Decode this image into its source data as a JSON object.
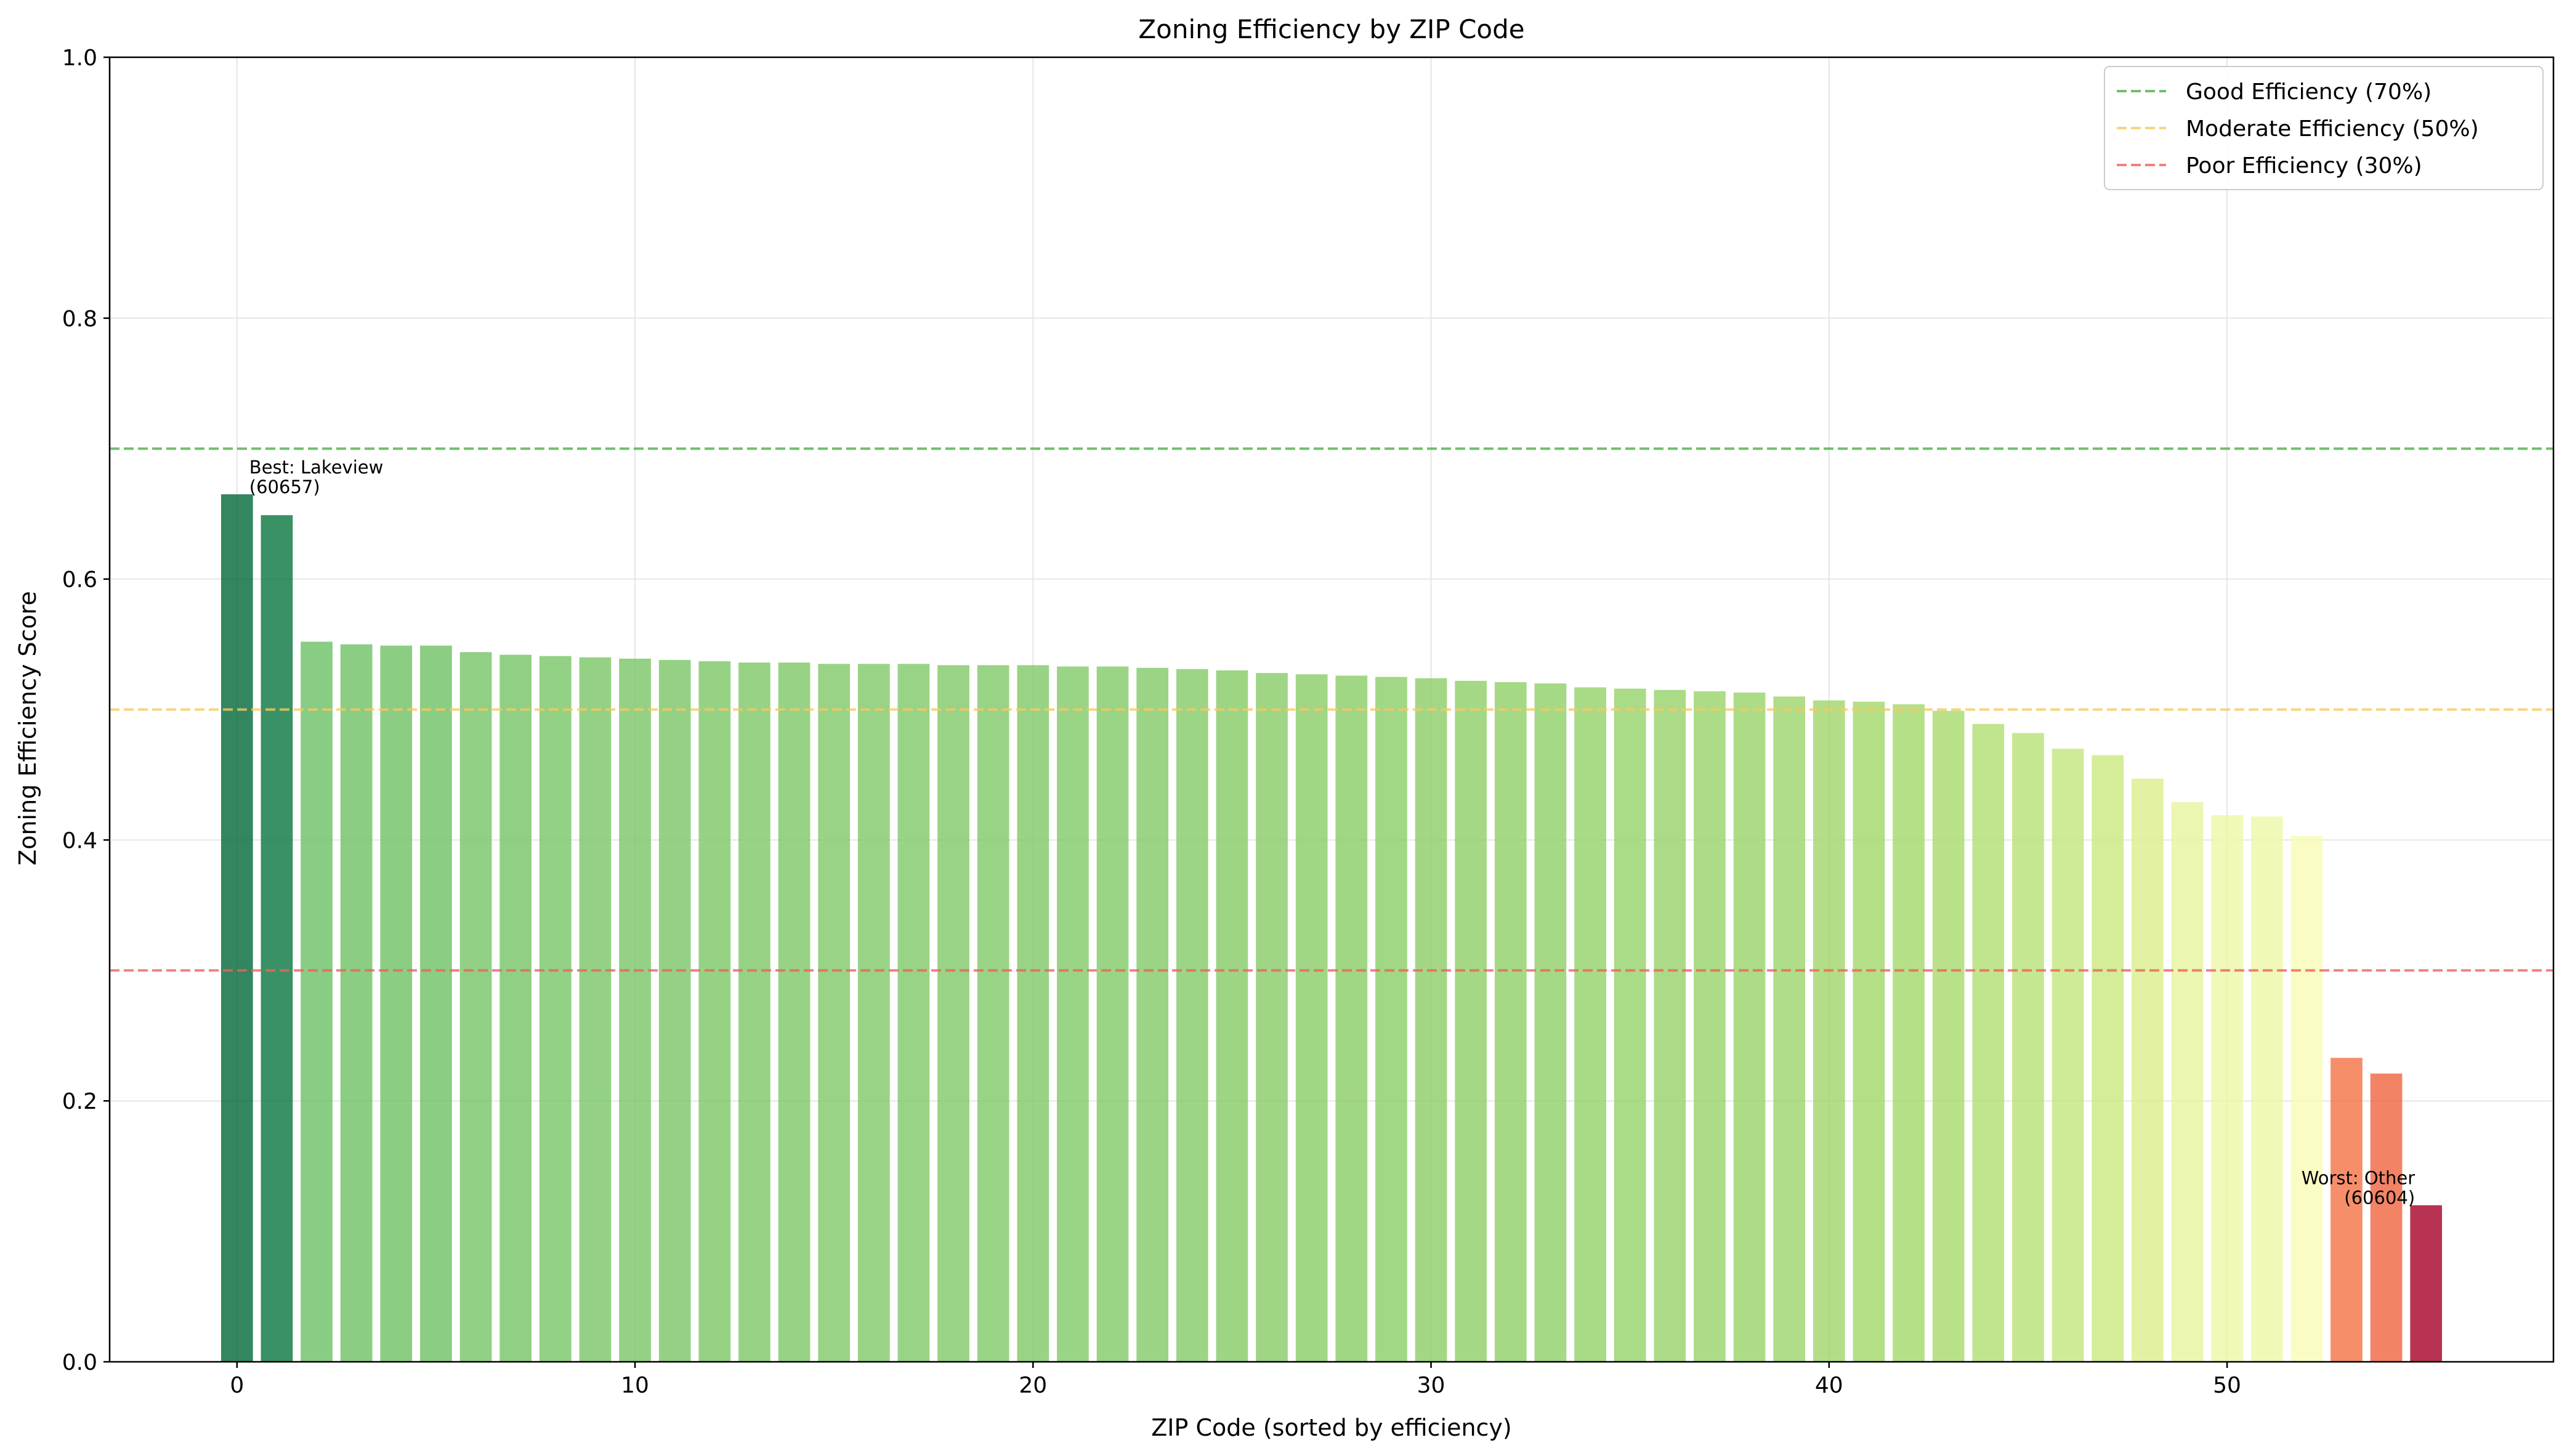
{
  "chart_data": {
    "type": "bar",
    "title": "Zoning Efficiency by ZIP Code",
    "xlabel": "ZIP Code (sorted by efficiency)",
    "ylabel": "Zoning Efficiency Score",
    "xlim": [
      -3.2,
      58.2
    ],
    "ylim": [
      0,
      1.0
    ],
    "xticks": [
      0,
      10,
      20,
      30,
      40,
      50
    ],
    "yticks": [
      0.0,
      0.2,
      0.4,
      0.6,
      0.8,
      1.0
    ],
    "ytick_labels": [
      "0.0",
      "0.2",
      "0.4",
      "0.6",
      "0.8",
      "1.0"
    ],
    "grid": true,
    "x": [
      0,
      1,
      2,
      3,
      4,
      5,
      6,
      7,
      8,
      9,
      10,
      11,
      12,
      13,
      14,
      15,
      16,
      17,
      18,
      19,
      20,
      21,
      22,
      23,
      24,
      25,
      26,
      27,
      28,
      29,
      30,
      31,
      32,
      33,
      34,
      35,
      36,
      37,
      38,
      39,
      40,
      41,
      42,
      43,
      44,
      45,
      46,
      47,
      48,
      49,
      50,
      51,
      52,
      53,
      54,
      55
    ],
    "values": [
      0.665,
      0.649,
      0.552,
      0.55,
      0.549,
      0.549,
      0.544,
      0.542,
      0.541,
      0.54,
      0.539,
      0.538,
      0.537,
      0.536,
      0.536,
      0.535,
      0.535,
      0.535,
      0.534,
      0.534,
      0.534,
      0.533,
      0.533,
      0.532,
      0.531,
      0.53,
      0.528,
      0.527,
      0.526,
      0.525,
      0.524,
      0.522,
      0.521,
      0.52,
      0.517,
      0.516,
      0.515,
      0.514,
      0.513,
      0.51,
      0.507,
      0.506,
      0.504,
      0.499,
      0.489,
      0.482,
      0.47,
      0.465,
      0.447,
      0.429,
      0.419,
      0.418,
      0.403,
      0.233,
      0.221,
      0.12
    ],
    "reference_lines": [
      {
        "name": "Good Efficiency (70%)",
        "y": 0.7,
        "color": "#4daf4a"
      },
      {
        "name": "Moderate Efficiency (50%)",
        "y": 0.5,
        "color": "#f7c85f"
      },
      {
        "name": "Poor Efficiency (30%)",
        "y": 0.3,
        "color": "#f0605d"
      }
    ],
    "legend_position": "top-right",
    "annotations": [
      {
        "lines": [
          "Best: Lakeview",
          "(60657)"
        ],
        "x": 0,
        "y": 0.665,
        "align": "left"
      },
      {
        "lines": [
          "Worst: Other",
          "(60604)"
        ],
        "x": 55,
        "y": 0.12,
        "align": "right"
      }
    ],
    "colormap": "RdYlGn"
  }
}
